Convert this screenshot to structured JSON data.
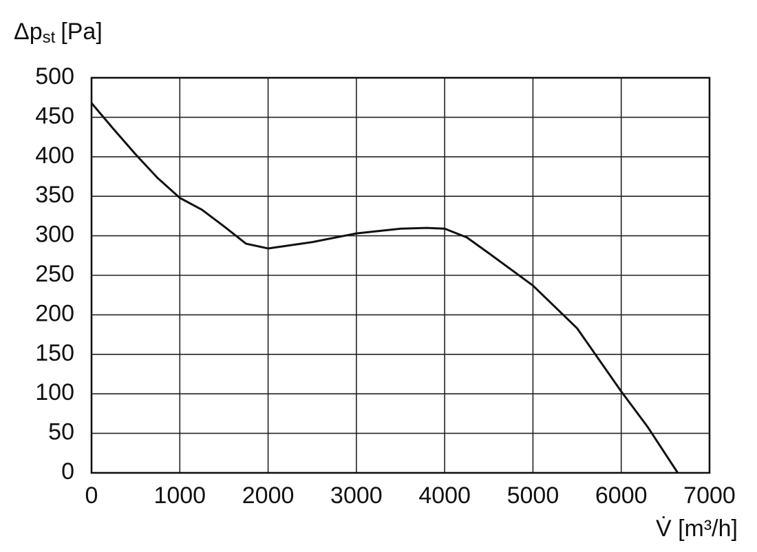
{
  "chart_data": {
    "type": "line",
    "ylabel": {
      "main": "Δp",
      "sub": "st",
      "unit": "[Pa]"
    },
    "xlabel": "V̇ [m³/h]",
    "x": [
      0,
      250,
      500,
      750,
      1000,
      1250,
      1500,
      1750,
      2000,
      2500,
      3000,
      3500,
      3800,
      4000,
      4250,
      4500,
      5000,
      5500,
      6000,
      6300,
      6640
    ],
    "series": [
      {
        "color": "#111111",
        "values": [
          468,
          435,
          403,
          373,
          348,
          333,
          312,
          290,
          284,
          292,
          303,
          309,
          310,
          309,
          298,
          278,
          237,
          183,
          103,
          58,
          0
        ]
      }
    ],
    "xlim": [
      0,
      7000
    ],
    "xticks": [
      0,
      1000,
      2000,
      3000,
      4000,
      5000,
      6000,
      7000
    ],
    "ylim": [
      0,
      500
    ],
    "yticks": [
      0,
      50,
      100,
      150,
      200,
      250,
      300,
      350,
      400,
      450,
      500
    ],
    "grid": true
  }
}
